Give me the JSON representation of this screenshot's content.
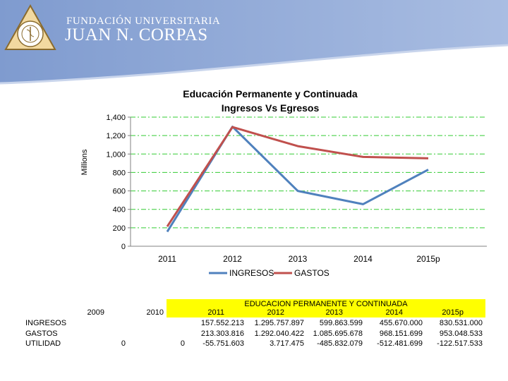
{
  "header": {
    "institution_line": "FUNDACIÓN UNIVERSITARIA",
    "institution_name": "JUAN N. CORPAS"
  },
  "colors": {
    "ingresos": "#4f81bd",
    "gastos": "#c0504d",
    "grid": "#33cc33",
    "banner": "#8fa7d4",
    "table_highlight": "#ffff00"
  },
  "chart_data": {
    "type": "line",
    "title": "Educación Permanente y Continuada",
    "subtitle": "Ingresos Vs Egresos",
    "ylabel": "Millions",
    "xlabel": "",
    "categories": [
      "2011",
      "2012",
      "2013",
      "2014",
      "2015p"
    ],
    "y_ticks": [
      "0",
      "200",
      "400",
      "600",
      "800",
      "1,000",
      "1,200",
      "1,400"
    ],
    "ylim": [
      0,
      1400
    ],
    "grid": true,
    "legend_position": "bottom",
    "series": [
      {
        "name": "INGRESOS",
        "values": [
          157.552,
          1295.758,
          599.864,
          455.67,
          830.531
        ]
      },
      {
        "name": "GASTOS",
        "values": [
          213.304,
          1292.04,
          1085.696,
          968.152,
          953.049
        ]
      }
    ]
  },
  "table": {
    "title": "EDUCACION PERMANENTE Y CONTINUADA",
    "years": [
      "2009",
      "2010",
      "2011",
      "2012",
      "2013",
      "2014",
      "2015p"
    ],
    "rows": [
      {
        "label": "INGRESOS",
        "values": [
          "",
          "",
          "157.552.213",
          "1.295.757.897",
          "599.863.599",
          "455.670.000",
          "830.531.000"
        ]
      },
      {
        "label": "GASTOS",
        "values": [
          "",
          "",
          "213.303.816",
          "1.292.040.422",
          "1.085.695.678",
          "968.151.699",
          "953.048.533"
        ]
      },
      {
        "label": "UTILIDAD",
        "values": [
          "0",
          "0",
          "-55.751.603",
          "3.717.475",
          "-485.832.079",
          "-512.481.699",
          "-122.517.533"
        ]
      }
    ]
  }
}
